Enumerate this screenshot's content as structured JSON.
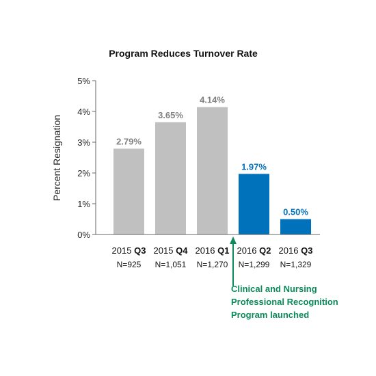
{
  "chart_data": {
    "type": "bar",
    "title": "Program Reduces Turnover Rate",
    "ylabel": "Percent Resignation",
    "xlabel": "",
    "ylim": [
      0,
      5
    ],
    "yticks": [
      "0%",
      "1%",
      "2%",
      "3%",
      "4%",
      "5%"
    ],
    "categories": [
      {
        "year": "2015",
        "quarter": "Q3",
        "n": "N=925"
      },
      {
        "year": "2015",
        "quarter": "Q4",
        "n": "N=1,051"
      },
      {
        "year": "2016",
        "quarter": "Q1",
        "n": "N=1,270"
      },
      {
        "year": "2016",
        "quarter": "Q2",
        "n": "N=1,299"
      },
      {
        "year": "2016",
        "quarter": "Q3",
        "n": "N=1,329"
      }
    ],
    "values": [
      2.79,
      3.65,
      4.14,
      1.97,
      0.5
    ],
    "data_labels": [
      "2.79%",
      "3.65%",
      "4.14%",
      "1.97%",
      "0.50%"
    ],
    "bar_colors": [
      "#c0c0c0",
      "#c0c0c0",
      "#c0c0c0",
      "#0072bc",
      "#0072bc"
    ],
    "label_colors": [
      "#808080",
      "#808080",
      "#808080",
      "#0072bc",
      "#0072bc"
    ],
    "grid": false,
    "annotation": {
      "lines": [
        "Clinical and Nursing",
        "Professional Recognition",
        "Program launched"
      ],
      "color": "#0b8a5a",
      "after_category_index": 2
    }
  }
}
